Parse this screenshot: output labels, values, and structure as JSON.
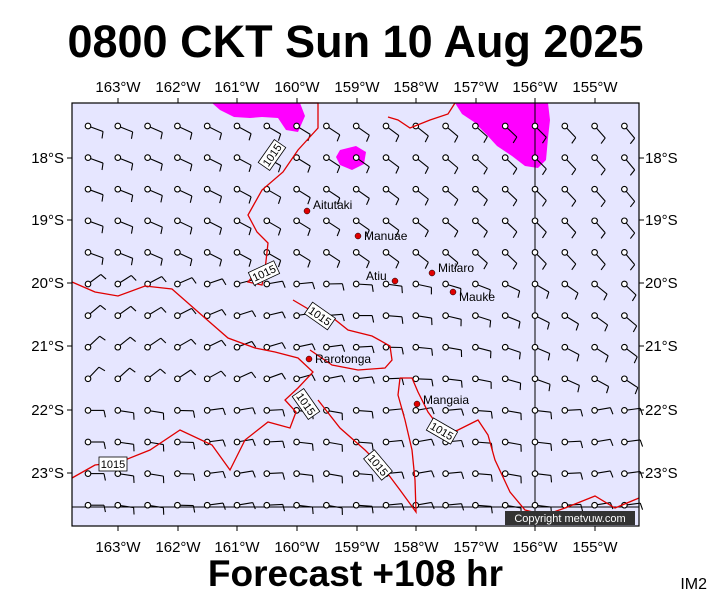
{
  "title": "0800 CKT Sun 10 Aug 2025",
  "footer": "Forecast +108 hr",
  "corner_label": "IM2",
  "copyright": "Copyright metvuw.com",
  "isobar_value": "1015",
  "lon_labels": [
    "163°W",
    "162°W",
    "161°W",
    "160°W",
    "159°W",
    "158°W",
    "157°W",
    "156°W",
    "155°W"
  ],
  "lat_labels": [
    "18°S",
    "19°S",
    "20°S",
    "21°S",
    "22°S",
    "23°S"
  ],
  "places": [
    {
      "name": "Aitutaki"
    },
    {
      "name": "Manuae"
    },
    {
      "name": "Atiu"
    },
    {
      "name": "Mitiaro"
    },
    {
      "name": "Mauke"
    },
    {
      "name": "Rarotonga"
    },
    {
      "name": "Mangaia"
    }
  ],
  "colors": {
    "ocean": "#e6e6ff",
    "isobar": "#e00000",
    "rain": "#ff00ff",
    "place_dot": "#e00000",
    "barb": "#000000"
  }
}
